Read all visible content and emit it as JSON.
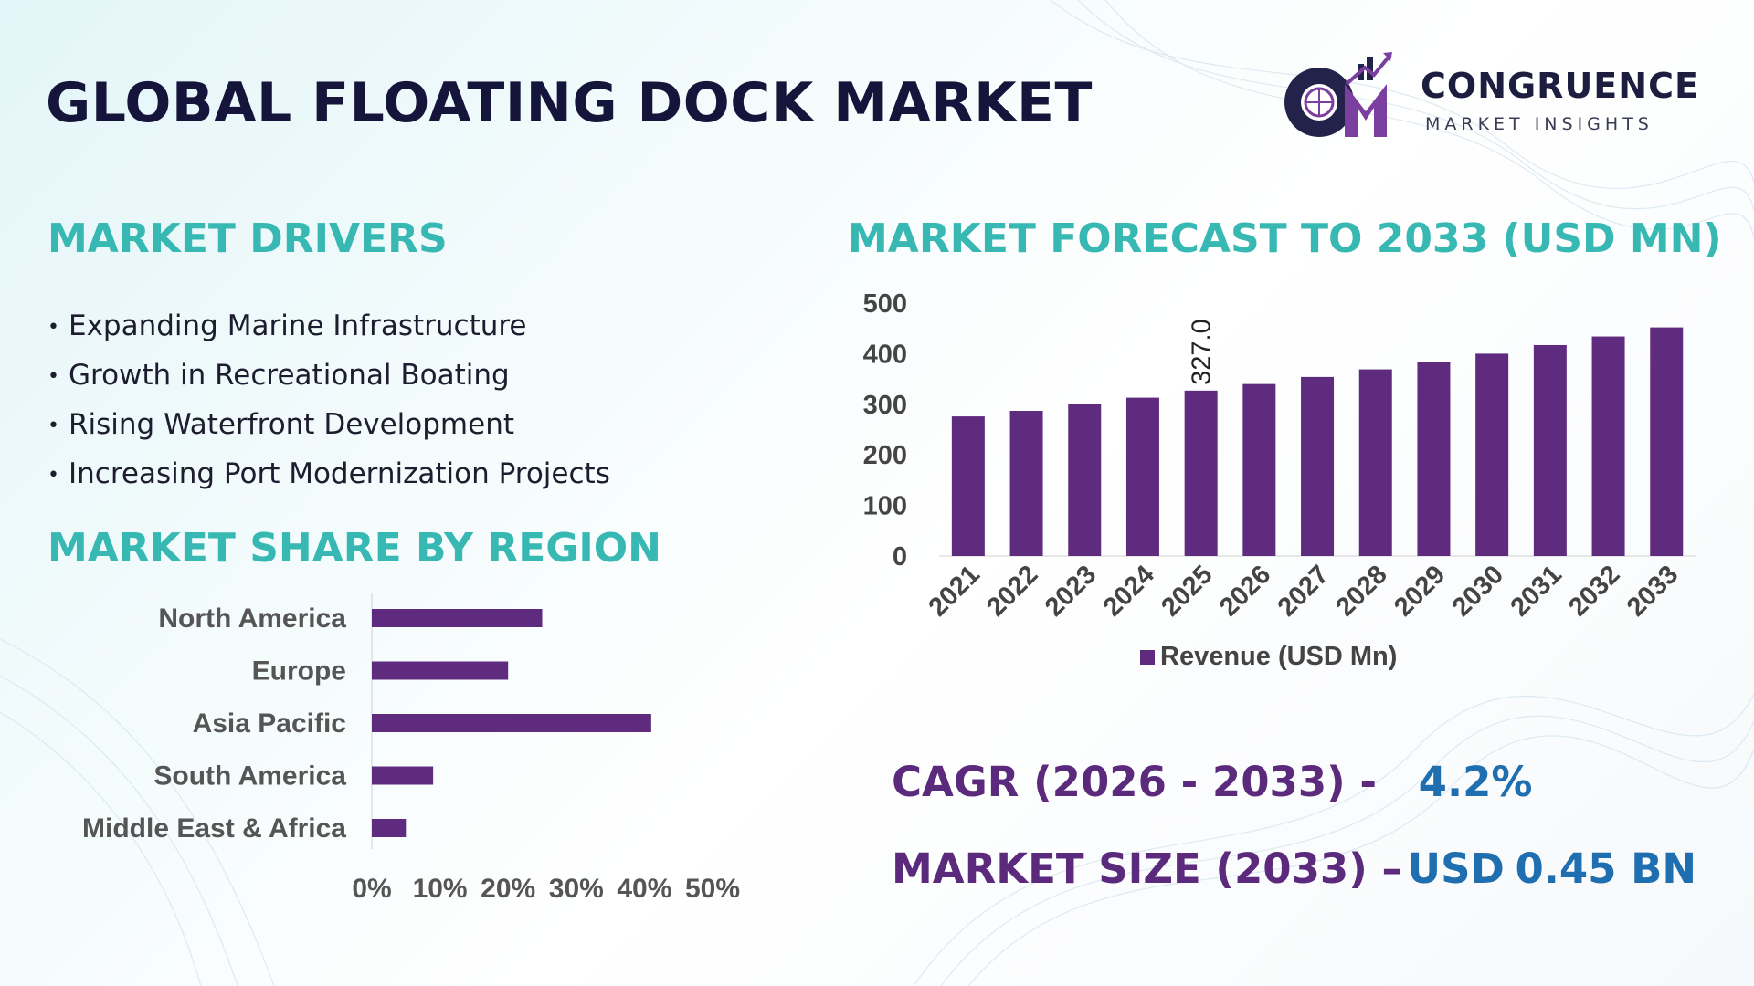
{
  "title": "GLOBAL FLOATING DOCK MARKET",
  "logo": {
    "name": "CONGRUENCE",
    "tagline": "MARKET INSIGHTS",
    "mark_icon": "cm-globe-chart-icon"
  },
  "drivers": {
    "heading": "MARKET DRIVERS",
    "items": [
      "Expanding Marine Infrastructure",
      "Growth in Recreational Boating",
      "Rising Waterfront Development",
      "Increasing Port Modernization Projects"
    ]
  },
  "region_share": {
    "heading": "MARKET SHARE BY REGION"
  },
  "forecast": {
    "heading": "MARKET FORECAST TO 2033 (USD MN)"
  },
  "stats": {
    "cagr_label": "CAGR (2026 - 2033) -",
    "cagr_value": "4.2%",
    "size_label": "MARKET SIZE (2033) –",
    "size_value_prefix": "USD",
    "size_value": "0.45 BN"
  },
  "colors": {
    "bar": "#5e2b7e",
    "title": "#15153b",
    "section_heading": "#37b8b3",
    "stat_label": "#5b2a7c",
    "stat_value": "#1f6fb0"
  },
  "chart_data": [
    {
      "type": "bar",
      "orientation": "horizontal",
      "categories": [
        "North America",
        "Europe",
        "Asia Pacific",
        "South America",
        "Middle East & Africa"
      ],
      "values": [
        25,
        20,
        41,
        9,
        5
      ],
      "unit": "%",
      "xlim": [
        0,
        50
      ],
      "xticks": [
        "0%",
        "10%",
        "20%",
        "30%",
        "40%",
        "50%"
      ],
      "grid": false
    },
    {
      "type": "bar",
      "categories": [
        "2021",
        "2022",
        "2023",
        "2024",
        "2025",
        "2026",
        "2027",
        "2028",
        "2029",
        "2030",
        "2031",
        "2032",
        "2033"
      ],
      "series": [
        {
          "name": "Revenue (USD Mn)",
          "values": [
            276,
            287,
            300,
            313,
            327.0,
            340,
            354,
            369,
            384,
            400,
            417,
            434,
            452
          ]
        }
      ],
      "data_labels": [
        {
          "category": "2025",
          "text": "327.0"
        }
      ],
      "ylim": [
        0,
        500
      ],
      "yticks": [
        "0",
        "100",
        "200",
        "300",
        "400",
        "500"
      ],
      "legend": "bottom",
      "grid": false
    }
  ]
}
